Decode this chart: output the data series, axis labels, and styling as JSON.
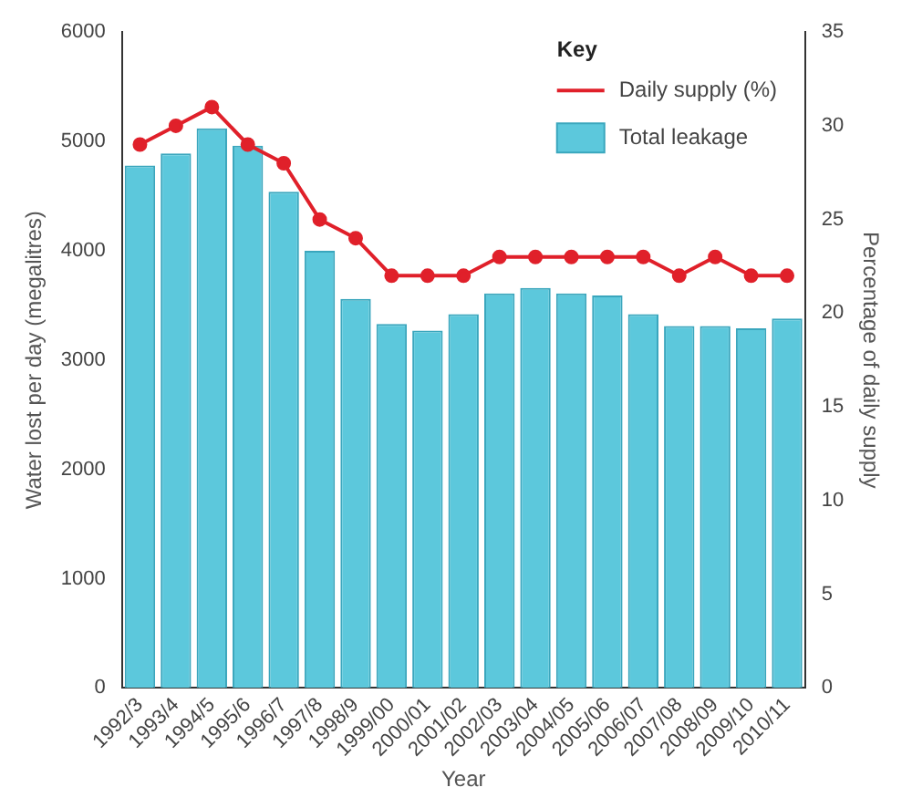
{
  "chart_data": {
    "type": "bar",
    "xlabel": "Year",
    "ylabel": "Water lost per day (megalitres)",
    "y2label": "Percentage of daily supply",
    "legend_title": "Key",
    "legend": "top right",
    "grid": false,
    "marker": "circle",
    "categories": [
      "1992/3",
      "1993/4",
      "1994/5",
      "1995/6",
      "1996/7",
      "1997/8",
      "1998/9",
      "1999/00",
      "2000/01",
      "2001/02",
      "2002/03",
      "2003/04",
      "2004/05",
      "2005/06",
      "2006/07",
      "2007/08",
      "2008/09",
      "2009/10",
      "2010/11"
    ],
    "series": [
      {
        "name": "Daily supply (%)",
        "type": "line",
        "axis": "y2",
        "color": "#e0202a",
        "values": [
          29,
          30,
          31,
          29,
          28,
          25,
          24,
          22,
          22,
          22,
          23,
          23,
          23,
          23,
          23,
          22,
          23,
          22,
          22
        ]
      },
      {
        "name": "Total leakage",
        "color": "#5cc8dc",
        "values": [
          4780,
          4890,
          5120,
          4960,
          4540,
          4000,
          3560,
          3330,
          3270,
          3420,
          3610,
          3660,
          3610,
          3590,
          3420,
          3310,
          3310,
          3290,
          3380
        ]
      }
    ],
    "ylim": [
      0,
      6000
    ],
    "yticks": [
      0,
      1000,
      2000,
      3000,
      4000,
      5000,
      6000
    ],
    "y2lim": [
      0,
      35
    ],
    "y2ticks": [
      0,
      5,
      10,
      15,
      20,
      25,
      30,
      35
    ]
  }
}
